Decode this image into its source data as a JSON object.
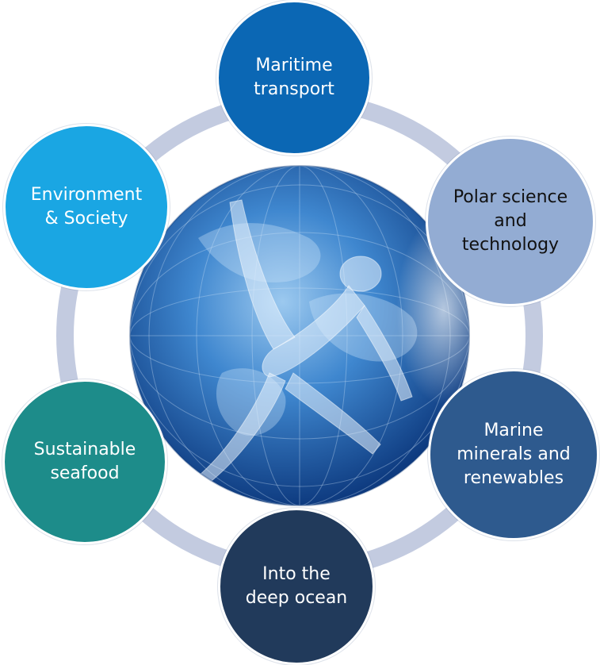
{
  "diagram": {
    "nodes": [
      {
        "id": "maritime",
        "label": "Maritime\ntransport",
        "color": "#0b67b4"
      },
      {
        "id": "polar",
        "label": "Polar science\nand\ntechnology",
        "color": "#93acd3"
      },
      {
        "id": "marine",
        "label": "Marine\nminerals and\nrenewables",
        "color": "#2e5a8e"
      },
      {
        "id": "deep",
        "label": "Into the\ndeep ocean",
        "color": "#213a5b"
      },
      {
        "id": "seafood",
        "label": "Sustainable\nseafood",
        "color": "#1d8c8a"
      },
      {
        "id": "env",
        "label": "Environment\n& Society",
        "color": "#1aa6e3"
      }
    ],
    "ring_color": "#c3cbe0",
    "globe_colors": {
      "deep": "#123f86",
      "mid": "#2b76c2",
      "light": "#7fb7e6"
    }
  }
}
